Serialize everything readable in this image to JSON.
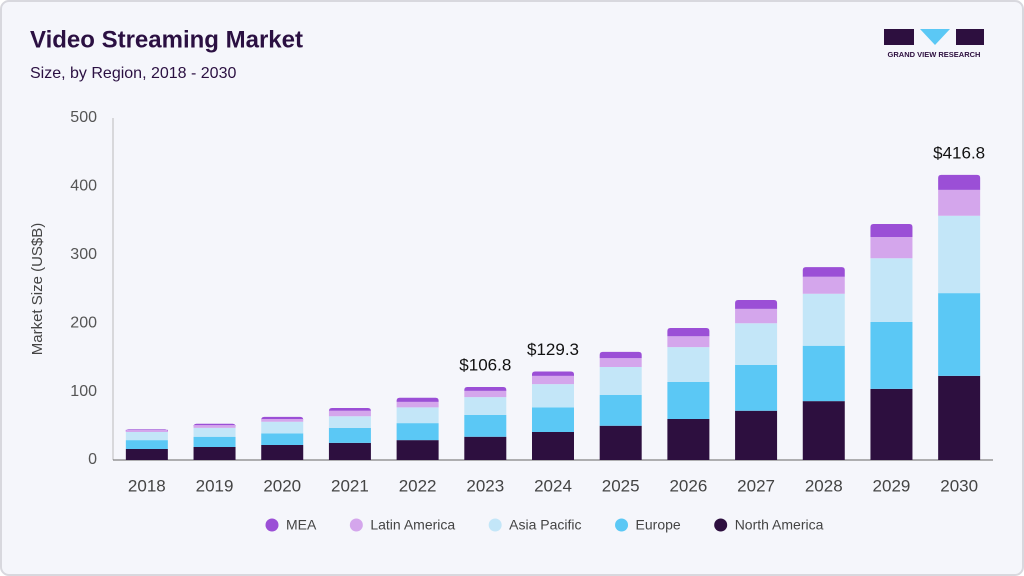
{
  "chart_data": {
    "type": "stacked_bar",
    "title": "Video Streaming Market",
    "subtitle": "Size, by Region, 2018 - 2030",
    "y_label": "Market Size (US$B)",
    "brand": "GRAND VIEW RESEARCH",
    "categories": [
      "2018",
      "2019",
      "2020",
      "2021",
      "2022",
      "2023",
      "2024",
      "2025",
      "2026",
      "2027",
      "2028",
      "2029",
      "2030"
    ],
    "series": [
      {
        "name": "MEA",
        "color": "#9b4fd6",
        "values": [
          1,
          2,
          3,
          4,
          6,
          5.8,
          6.3,
          9,
          12,
          13,
          14,
          19,
          21.8
        ]
      },
      {
        "name": "Latin America",
        "color": "#d4a6ec",
        "values": [
          3,
          4,
          4,
          8,
          8,
          9,
          12,
          13,
          16,
          21,
          25,
          31,
          38
        ]
      },
      {
        "name": "Asia Pacific",
        "color": "#c3e6f8",
        "values": [
          12,
          13,
          17,
          17,
          23,
          26,
          34,
          41,
          51,
          61,
          76,
          93,
          113
        ]
      },
      {
        "name": "Europe",
        "color": "#5bc8f5",
        "values": [
          13,
          15,
          17,
          22,
          25,
          32,
          36,
          45,
          54,
          67,
          81,
          98,
          121
        ]
      },
      {
        "name": "North America",
        "color": "#2d0f3f",
        "values": [
          16,
          19,
          22,
          25,
          29,
          34,
          41,
          50,
          60,
          72,
          86,
          104,
          123
        ]
      }
    ],
    "annotations": [
      {
        "x": "2023",
        "value": 106.8,
        "label": "$106.8"
      },
      {
        "x": "2024",
        "value": 129.3,
        "label": "$129.3"
      },
      {
        "x": "2030",
        "value": 416.8,
        "label": "$416.8"
      }
    ],
    "ylim": [
      0,
      500
    ],
    "yticks": [
      0,
      100,
      200,
      300,
      400,
      500
    ],
    "grid": false,
    "legend": "bottom"
  }
}
